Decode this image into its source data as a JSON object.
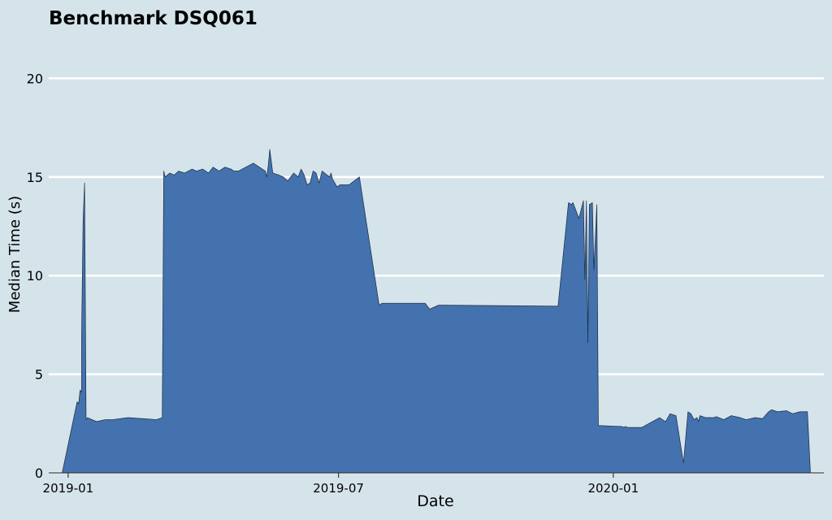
{
  "colors": {
    "background": "#d5e4eb",
    "area_fill": "#4372ae",
    "area_edge": "#1b2a3c",
    "gridline": "#ffffff",
    "axis_line": "#3a3a3a",
    "text": "#000000"
  },
  "chart_data": {
    "type": "area",
    "title": "Benchmark DSQ061",
    "xlabel": "Date",
    "ylabel": "Median Time (s)",
    "x_ticks": [
      "2019-01",
      "2019-07",
      "2020-01"
    ],
    "y_ticks": [
      0,
      5,
      10,
      15,
      20
    ],
    "xlim": [
      "2018-12-19",
      "2020-05-21"
    ],
    "ylim": [
      0,
      21.5
    ],
    "grid": "horizontal",
    "legend": "none",
    "series": [
      {
        "x": [
          "2018-12-28",
          "2019-01-07",
          "2019-01-08",
          "2019-01-09",
          "2019-01-10",
          "2019-01-10",
          "2019-01-11",
          "2019-01-12",
          "2019-01-13",
          "2019-01-14",
          "2019-01-20",
          "2019-01-26",
          "2019-01-31",
          "2019-02-10",
          "2019-02-20",
          "2019-03-01",
          "2019-03-05",
          "2019-03-06",
          "2019-03-07",
          "2019-03-10",
          "2019-03-13",
          "2019-03-16",
          "2019-03-20",
          "2019-03-25",
          "2019-03-28",
          "2019-04-01",
          "2019-04-05",
          "2019-04-08",
          "2019-04-12",
          "2019-04-16",
          "2019-04-20",
          "2019-04-22",
          "2019-04-25",
          "2019-05-05",
          "2019-05-13",
          "2019-05-14",
          "2019-05-15",
          "2019-05-16",
          "2019-05-18",
          "2019-05-22",
          "2019-05-25",
          "2019-05-28",
          "2019-06-01",
          "2019-06-04",
          "2019-06-06",
          "2019-06-08",
          "2019-06-10",
          "2019-06-12",
          "2019-06-14",
          "2019-06-16",
          "2019-06-18",
          "2019-06-20",
          "2019-06-25",
          "2019-06-26",
          "2019-06-27",
          "2019-06-30",
          "2019-07-02",
          "2019-07-05",
          "2019-07-08",
          "2019-07-15",
          "2019-07-28",
          "2019-07-29",
          "2019-07-30",
          "2019-08-28",
          "2019-08-31",
          "2019-09-06",
          "2019-09-08",
          "2019-09-10",
          "2019-11-25",
          "2019-12-02",
          "2019-12-04",
          "2019-12-05",
          "2019-12-09",
          "2019-12-11",
          "2019-12-12",
          "2019-12-13",
          "2019-12-14",
          "2019-12-15",
          "2019-12-16",
          "2019-12-18",
          "2019-12-19",
          "2019-12-21",
          "2019-12-22",
          "2020-01-07",
          "2020-01-08",
          "2020-01-09",
          "2020-01-11",
          "2020-01-13",
          "2020-01-15",
          "2020-01-20",
          "2020-02-01",
          "2020-02-05",
          "2020-02-08",
          "2020-02-12",
          "2020-02-17",
          "2020-02-20",
          "2020-02-22",
          "2020-02-24",
          "2020-02-26",
          "2020-02-27",
          "2020-02-28",
          "2020-03-03",
          "2020-03-08",
          "2020-03-10",
          "2020-03-15",
          "2020-03-20",
          "2020-03-26",
          "2020-03-30",
          "2020-04-05",
          "2020-04-10",
          "2020-04-14",
          "2020-04-16",
          "2020-04-20",
          "2020-04-26",
          "2020-04-30",
          "2020-05-05",
          "2020-05-10",
          "2020-05-12"
        ],
        "y": [
          0.0,
          3.6,
          3.5,
          4.2,
          4.1,
          7.0,
          12.8,
          14.7,
          2.7,
          2.8,
          2.6,
          2.7,
          2.7,
          2.8,
          2.75,
          2.7,
          2.8,
          15.3,
          15.0,
          15.2,
          15.1,
          15.3,
          15.2,
          15.4,
          15.3,
          15.4,
          15.2,
          15.5,
          15.3,
          15.5,
          15.4,
          15.3,
          15.3,
          15.7,
          15.3,
          15.0,
          15.6,
          16.4,
          15.2,
          15.1,
          15.0,
          14.8,
          15.2,
          15.0,
          15.4,
          15.1,
          14.6,
          14.7,
          15.3,
          15.2,
          14.7,
          15.3,
          15.0,
          15.2,
          14.9,
          14.5,
          14.6,
          14.6,
          14.6,
          15.0,
          8.6,
          8.5,
          8.6,
          8.6,
          8.3,
          8.5,
          8.5,
          8.5,
          8.45,
          13.7,
          13.6,
          13.7,
          12.9,
          13.5,
          13.8,
          9.8,
          13.8,
          6.6,
          13.6,
          13.7,
          10.3,
          13.6,
          2.4,
          2.35,
          2.3,
          2.35,
          2.3,
          2.3,
          2.3,
          2.3,
          2.8,
          2.6,
          3.0,
          2.9,
          0.5,
          3.1,
          3.0,
          2.7,
          2.8,
          2.6,
          2.9,
          2.8,
          2.8,
          2.85,
          2.7,
          2.9,
          2.8,
          2.7,
          2.8,
          2.75,
          3.1,
          3.2,
          3.1,
          3.15,
          3.0,
          3.1,
          3.1,
          0.0
        ]
      }
    ]
  }
}
